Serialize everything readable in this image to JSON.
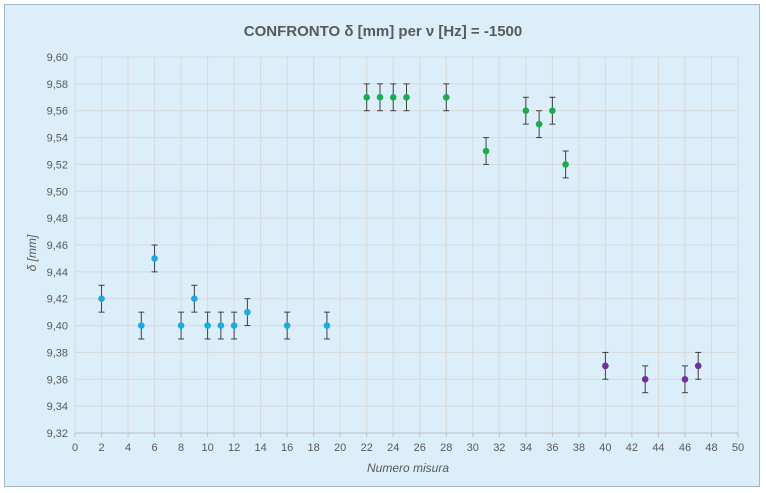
{
  "chart_data": {
    "type": "scatter",
    "title": "CONFRONTO δ [mm] per ν [Hz] = -1500",
    "xlabel": "Numero misura",
    "ylabel": "δ [mm]",
    "xlim": [
      0,
      50
    ],
    "ylim": [
      9.32,
      9.6
    ],
    "x_ticks": [
      "0",
      "2",
      "4",
      "6",
      "8",
      "10",
      "12",
      "14",
      "16",
      "18",
      "20",
      "22",
      "24",
      "26",
      "28",
      "30",
      "32",
      "34",
      "36",
      "38",
      "40",
      "42",
      "44",
      "46",
      "48",
      "50"
    ],
    "y_ticks": [
      "9,32",
      "9,34",
      "9,36",
      "9,38",
      "9,40",
      "9,42",
      "9,44",
      "9,46",
      "9,48",
      "9,50",
      "9,52",
      "9,54",
      "9,56",
      "9,58",
      "9,60"
    ],
    "grid": true,
    "legend": "none",
    "error": 0.01,
    "series": [
      {
        "color": "#1fa9e1",
        "points": [
          [
            2,
            9.42
          ],
          [
            5,
            9.4
          ],
          [
            6,
            9.45
          ],
          [
            8,
            9.4
          ],
          [
            9,
            9.42
          ],
          [
            10,
            9.4
          ],
          [
            11,
            9.4
          ],
          [
            12,
            9.4
          ],
          [
            13,
            9.41
          ],
          [
            16,
            9.4
          ],
          [
            19,
            9.4
          ]
        ]
      },
      {
        "color": "#1aad4d",
        "points": [
          [
            22,
            9.57
          ],
          [
            23,
            9.57
          ],
          [
            24,
            9.57
          ],
          [
            25,
            9.57
          ],
          [
            28,
            9.57
          ],
          [
            31,
            9.53
          ],
          [
            34,
            9.56
          ],
          [
            35,
            9.55
          ],
          [
            36,
            9.56
          ],
          [
            37,
            9.52
          ]
        ]
      },
      {
        "color": "#7030a0",
        "points": [
          [
            40,
            9.37
          ],
          [
            43,
            9.36
          ],
          [
            46,
            9.36
          ],
          [
            47,
            9.37
          ]
        ]
      }
    ],
    "colors": {
      "grid": "#d9d9d9",
      "axis": "#bfbfbf",
      "text": "#595959",
      "errorbar": "#404040"
    }
  }
}
